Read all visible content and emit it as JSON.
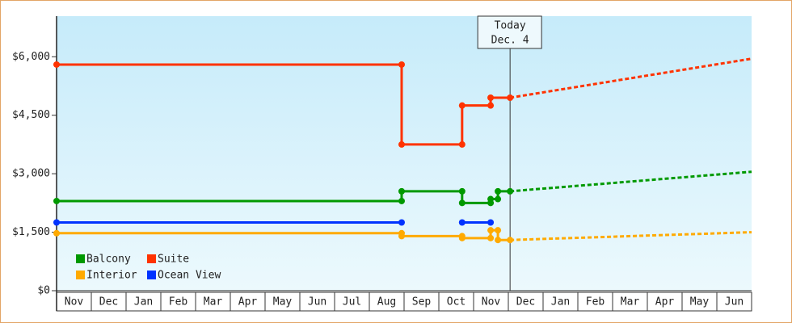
{
  "chart_data": {
    "type": "line",
    "xlim": [
      0,
      20
    ],
    "xticks": [
      {
        "value": 0.5,
        "label": "Nov"
      },
      {
        "value": 1.5,
        "label": "Dec"
      },
      {
        "value": 2.5,
        "label": "Jan"
      },
      {
        "value": 3.5,
        "label": "Feb"
      },
      {
        "value": 4.5,
        "label": "Mar"
      },
      {
        "value": 5.5,
        "label": "Apr"
      },
      {
        "value": 6.5,
        "label": "May"
      },
      {
        "value": 7.5,
        "label": "Jun"
      },
      {
        "value": 8.5,
        "label": "Jul"
      },
      {
        "value": 9.5,
        "label": "Aug"
      },
      {
        "value": 10.5,
        "label": "Sep"
      },
      {
        "value": 11.5,
        "label": "Oct"
      },
      {
        "value": 12.5,
        "label": "Nov"
      },
      {
        "value": 13.5,
        "label": "Dec"
      },
      {
        "value": 14.5,
        "label": "Jan"
      },
      {
        "value": 15.5,
        "label": "Feb"
      },
      {
        "value": 16.5,
        "label": "Mar"
      },
      {
        "value": 17.5,
        "label": "Apr"
      },
      {
        "value": 18.5,
        "label": "May"
      },
      {
        "value": 19.5,
        "label": "Jun"
      }
    ],
    "ylim": [
      0,
      7000
    ],
    "yticks": [
      {
        "value": 0,
        "label": "$0"
      },
      {
        "value": 1500,
        "label": "$1,500"
      },
      {
        "value": 3000,
        "label": "$3,000"
      },
      {
        "value": 4500,
        "label": "$4,500"
      },
      {
        "value": 6000,
        "label": "$6,000"
      }
    ],
    "today": {
      "x": 13.05,
      "label": "Today",
      "date": "Dec. 4"
    },
    "legend": "lower left",
    "series": [
      {
        "name": "Balcony",
        "color": "#009900",
        "x": [
          0,
          9.93,
          9.93,
          11.67,
          11.67,
          12.49,
          12.49,
          12.7,
          12.7,
          13.05
        ],
        "values": [
          2300,
          2300,
          2550,
          2550,
          2250,
          2250,
          2350,
          2350,
          2550,
          2550
        ],
        "forecast": {
          "x": [
            13.05,
            20
          ],
          "values": [
            2550,
            3050
          ]
        }
      },
      {
        "name": "Suite",
        "color": "#ff3300",
        "x": [
          0,
          9.93,
          9.93,
          11.67,
          11.67,
          12.49,
          12.49,
          13.05
        ],
        "values": [
          5800,
          5800,
          3750,
          3750,
          4750,
          4750,
          4950,
          4950
        ],
        "forecast": {
          "x": [
            13.05,
            20
          ],
          "values": [
            4950,
            5950
          ]
        }
      },
      {
        "name": "Interior",
        "color": "#ffaa00",
        "x": [
          0,
          9.93,
          9.93,
          11.67,
          11.67,
          12.49,
          12.49,
          12.7,
          12.7,
          13.05
        ],
        "values": [
          1475,
          1475,
          1400,
          1400,
          1350,
          1350,
          1550,
          1550,
          1300,
          1300
        ],
        "forecast": {
          "x": [
            13.05,
            20
          ],
          "values": [
            1300,
            1500
          ]
        }
      },
      {
        "name": "Ocean View",
        "color": "#0033ff",
        "x": [
          0,
          9.93,
          10.8,
          11.67,
          12.49
        ],
        "values": [
          1750,
          1750,
          null,
          1750,
          1750
        ]
      }
    ]
  }
}
